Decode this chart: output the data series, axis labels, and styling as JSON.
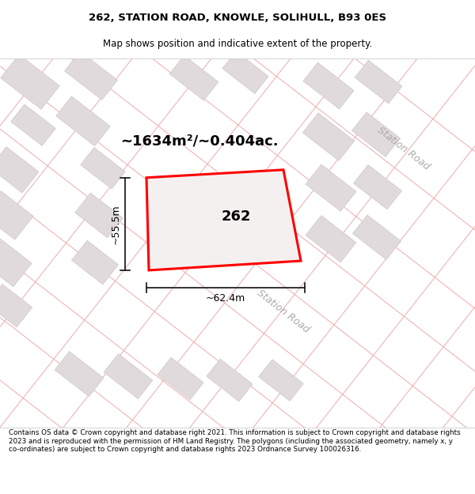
{
  "title": "262, STATION ROAD, KNOWLE, SOLIHULL, B93 0ES",
  "subtitle": "Map shows position and indicative extent of the property.",
  "footer": "Contains OS data © Crown copyright and database right 2021. This information is subject to Crown copyright and database rights 2023 and is reproduced with the permission of HM Land Registry. The polygons (including the associated geometry, namely x, y co-ordinates) are subject to Crown copyright and database rights 2023 Ordnance Survey 100026316.",
  "area_label": "~1634m²/~0.404ac.",
  "plot_number": "262",
  "width_label": "~62.4m",
  "height_label": "~55.5m",
  "map_bg": "#faf8f8",
  "plot_edge_color": "#ff0000",
  "plot_fill": "#f5f0f0",
  "road_line_color": "#f0b0b0",
  "building_face_color": "#e0dadc",
  "building_edge_color": "#d0c8ca",
  "station_road_label_color": "#b0a8a8",
  "dim_line_color": "#111111",
  "title_fontsize": 9.5,
  "subtitle_fontsize": 8.5,
  "footer_fontsize": 6.3,
  "area_fontsize": 13,
  "plot_num_fontsize": 13,
  "road_label_fontsize": 9,
  "dim_fontsize": 9
}
